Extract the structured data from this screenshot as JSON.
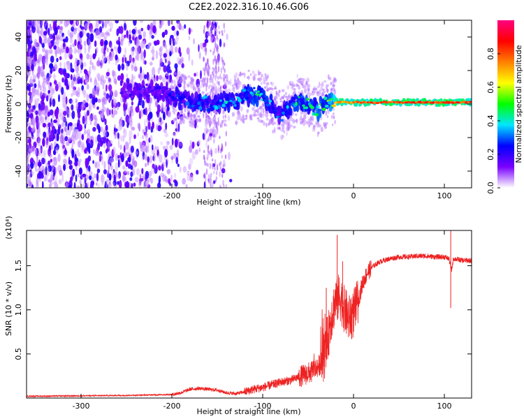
{
  "title": "C2E2.2022.316.10.46.G06",
  "chart_data": [
    {
      "type": "heatmap",
      "xlabel": "Height of straight line (km)",
      "ylabel": "Frequency (Hz)",
      "xlim": [
        -360,
        130
      ],
      "ylim": [
        -50,
        50
      ],
      "xticks": [
        -300,
        -200,
        -100,
        0,
        100
      ],
      "yticks": [
        -40,
        -20,
        0,
        20,
        40
      ],
      "grid": false,
      "colorbar": {
        "label": "Normalized spectral amplitude",
        "range": [
          0,
          1
        ],
        "ticks": [
          "0.0",
          "0.2",
          "0.4",
          "0.6",
          "0.8"
        ],
        "colors": [
          "#ffffff",
          "#7a00ff",
          "#0000ff",
          "#00e5ff",
          "#00ff00",
          "#ffff00",
          "#ff8000",
          "#ff0000",
          "#ff0080"
        ]
      },
      "ridge": {
        "x": [
          -250,
          -220,
          -190,
          -160,
          -130,
          -110,
          -95,
          -80,
          -70,
          -60,
          -50,
          -40,
          -30,
          -20,
          0,
          20,
          50,
          80,
          110,
          130
        ],
        "frequency": [
          8,
          8,
          3,
          0,
          3,
          6,
          2,
          -7,
          -2,
          3,
          0,
          -4,
          2,
          1,
          1,
          1,
          1,
          1,
          1,
          1
        ],
        "peak_amplitude": [
          0.2,
          0.2,
          0.3,
          0.35,
          0.4,
          0.45,
          0.4,
          0.3,
          0.4,
          0.45,
          0.45,
          0.5,
          0.5,
          0.75,
          0.8,
          0.85,
          0.85,
          0.85,
          0.85,
          0.85
        ]
      }
    },
    {
      "type": "line",
      "xlabel": "Height of straight line (km)",
      "ylabel": "SNR (10 * v/v)",
      "y_multiplier": "(x10⁴)",
      "xlim": [
        -360,
        130
      ],
      "ylim": [
        0,
        1.9
      ],
      "xticks": [
        -300,
        -200,
        -100,
        0,
        100
      ],
      "yticks": [
        "0.5",
        "1.0",
        "1.5"
      ],
      "grid": false,
      "series": [
        {
          "color": "#ee2222",
          "x": [
            -360,
            -300,
            -250,
            -200,
            -190,
            -180,
            -170,
            -160,
            -150,
            -140,
            -130,
            -120,
            -110,
            -100,
            -90,
            -80,
            -70,
            -60,
            -50,
            -45,
            -40,
            -35,
            -30,
            -25,
            -20,
            -15,
            -10,
            -5,
            0,
            5,
            10,
            15,
            20,
            25,
            30,
            40,
            50,
            60,
            70,
            80,
            90,
            100,
            105,
            108,
            110,
            115,
            120,
            130
          ],
          "values": [
            0.02,
            0.025,
            0.03,
            0.04,
            0.06,
            0.1,
            0.11,
            0.1,
            0.09,
            0.06,
            0.05,
            0.07,
            0.1,
            0.12,
            0.15,
            0.18,
            0.2,
            0.24,
            0.28,
            0.3,
            0.35,
            0.4,
            0.55,
            0.9,
            1.1,
            1.15,
            1.0,
            0.9,
            0.95,
            1.1,
            1.3,
            1.42,
            1.48,
            1.52,
            1.55,
            1.58,
            1.6,
            1.6,
            1.61,
            1.61,
            1.6,
            1.6,
            1.58,
            1.45,
            1.58,
            1.57,
            1.56,
            1.56
          ],
          "spikes": [
            {
              "x": -18,
              "value": 1.85
            },
            {
              "x": -12,
              "value": 1.55
            },
            {
              "x": -30,
              "value": 1.25
            },
            {
              "x": 107,
              "value": 1.92
            },
            {
              "x": 107,
              "value": 1.02
            }
          ]
        }
      ]
    }
  ]
}
